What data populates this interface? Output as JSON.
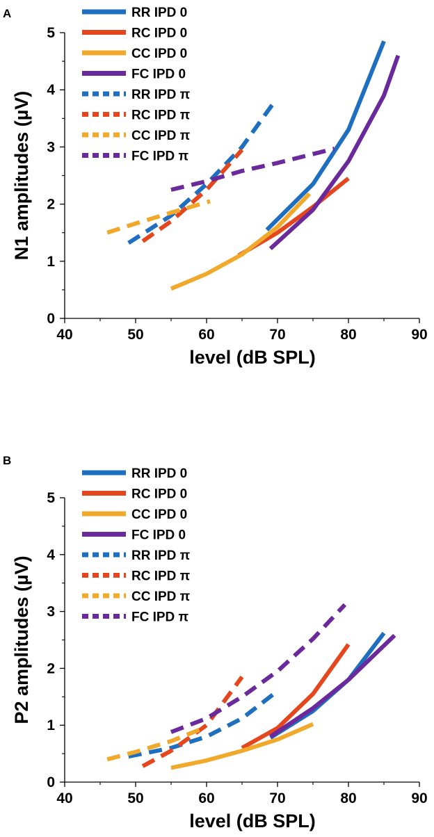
{
  "chart_data": [
    {
      "panel_label": "A",
      "type": "line",
      "xlabel": "level (dB SPL)",
      "ylabel": "N1 amplitudes  (µV)",
      "xlim": [
        40,
        90
      ],
      "ylim": [
        0,
        5
      ],
      "xticks": [
        "40",
        "50",
        "60",
        "70",
        "80",
        "90"
      ],
      "yticks": [
        "0",
        "1",
        "2",
        "3",
        "4",
        "5"
      ],
      "legend": [
        "RR IPD 0",
        "RC IPD 0",
        "CC IPD 0",
        "FC IPD 0",
        "RR IPD π",
        "RC IPD π",
        "CC IPD π",
        "FC IPD π"
      ],
      "series": [
        {
          "name": "RR IPD 0",
          "color": "#1f6fc0",
          "dash": "solid",
          "x": [
            68.5,
            75,
            80,
            85
          ],
          "y": [
            1.55,
            2.35,
            3.3,
            4.85
          ]
        },
        {
          "name": "RC IPD 0",
          "color": "#e4471d",
          "dash": "solid",
          "x": [
            64.5,
            70,
            75,
            80
          ],
          "y": [
            1.1,
            1.5,
            1.95,
            2.45
          ]
        },
        {
          "name": "CC IPD 0",
          "color": "#f0a92a",
          "dash": "solid",
          "x": [
            55,
            60,
            65,
            70,
            74.5
          ],
          "y": [
            0.52,
            0.78,
            1.12,
            1.6,
            2.18
          ]
        },
        {
          "name": "FC IPD 0",
          "color": "#6b2a9b",
          "dash": "solid",
          "x": [
            69,
            75,
            80,
            85,
            87
          ],
          "y": [
            1.22,
            1.9,
            2.75,
            3.9,
            4.6
          ]
        },
        {
          "name": "RR IPD π",
          "color": "#1f6fc0",
          "dash": "dash",
          "x": [
            49,
            55,
            60,
            65,
            69.5
          ],
          "y": [
            1.32,
            1.8,
            2.35,
            3.0,
            3.78
          ]
        },
        {
          "name": "RC IPD π",
          "color": "#e4471d",
          "dash": "dash",
          "x": [
            51,
            55,
            60,
            65
          ],
          "y": [
            1.35,
            1.7,
            2.25,
            2.95
          ]
        },
        {
          "name": "CC IPD π",
          "color": "#f0a92a",
          "dash": "dash",
          "x": [
            46,
            50,
            55,
            60.5
          ],
          "y": [
            1.5,
            1.66,
            1.85,
            2.05
          ]
        },
        {
          "name": "FC IPD π",
          "color": "#6b2a9b",
          "dash": "dash",
          "x": [
            55,
            60,
            65,
            70,
            78
          ],
          "y": [
            2.25,
            2.4,
            2.58,
            2.72,
            2.97
          ]
        }
      ]
    },
    {
      "panel_label": "B",
      "type": "line",
      "xlabel": "level (dB SPL)",
      "ylabel": "P2 amplitudes  (µV)",
      "xlim": [
        40,
        90
      ],
      "ylim": [
        0,
        5
      ],
      "xticks": [
        "40",
        "50",
        "60",
        "70",
        "80",
        "90"
      ],
      "yticks": [
        "0",
        "1",
        "2",
        "3",
        "4",
        "5"
      ],
      "legend": [
        "RR IPD 0",
        "RC IPD 0",
        "CC IPD 0",
        "FC IPD 0",
        "RR IPD π",
        "RC IPD π",
        "CC IPD π",
        "FC IPD π"
      ],
      "series": [
        {
          "name": "RR IPD 0",
          "color": "#1f6fc0",
          "dash": "solid",
          "x": [
            69,
            75,
            80,
            85
          ],
          "y": [
            0.78,
            1.25,
            1.8,
            2.62
          ]
        },
        {
          "name": "RC IPD 0",
          "color": "#e4471d",
          "dash": "solid",
          "x": [
            65,
            70,
            75,
            80
          ],
          "y": [
            0.6,
            0.95,
            1.55,
            2.42
          ]
        },
        {
          "name": "CC IPD 0",
          "color": "#f0a92a",
          "dash": "solid",
          "x": [
            55,
            60,
            65,
            70,
            75
          ],
          "y": [
            0.25,
            0.38,
            0.55,
            0.75,
            1.02
          ]
        },
        {
          "name": "FC IPD 0",
          "color": "#6b2a9b",
          "dash": "solid",
          "x": [
            69,
            75,
            80,
            86.5
          ],
          "y": [
            0.8,
            1.3,
            1.8,
            2.58
          ]
        },
        {
          "name": "RR IPD π",
          "color": "#1f6fc0",
          "dash": "dash",
          "x": [
            49,
            55,
            60,
            65,
            70
          ],
          "y": [
            0.45,
            0.6,
            0.8,
            1.12,
            1.6
          ]
        },
        {
          "name": "RC IPD π",
          "color": "#e4471d",
          "dash": "dash",
          "x": [
            51,
            55,
            60,
            65
          ],
          "y": [
            0.28,
            0.55,
            1.0,
            1.85
          ]
        },
        {
          "name": "CC IPD π",
          "color": "#f0a92a",
          "dash": "dash",
          "x": [
            46,
            50,
            55,
            59
          ],
          "y": [
            0.4,
            0.53,
            0.72,
            0.92
          ]
        },
        {
          "name": "FC IPD π",
          "color": "#6b2a9b",
          "dash": "dash",
          "x": [
            55,
            60,
            65,
            70,
            75,
            79.5
          ],
          "y": [
            0.88,
            1.12,
            1.5,
            1.95,
            2.52,
            3.12
          ]
        }
      ]
    }
  ]
}
